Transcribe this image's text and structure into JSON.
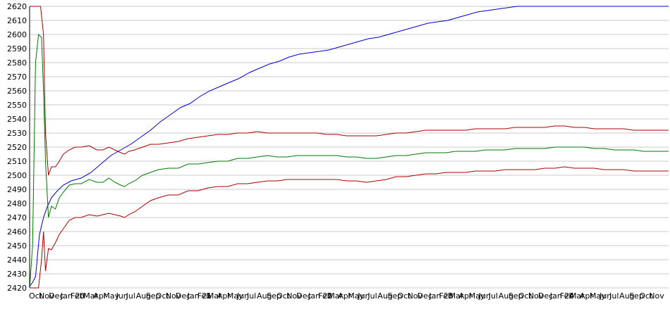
{
  "chart_data": {
    "type": "line",
    "title": "",
    "xlabel": "",
    "ylabel": "",
    "ylim": [
      2420,
      2620
    ],
    "yticks": [
      2420,
      2430,
      2440,
      2450,
      2460,
      2470,
      2480,
      2490,
      2500,
      2510,
      2520,
      2530,
      2540,
      2550,
      2560,
      2570,
      2580,
      2590,
      2600,
      2610,
      2620
    ],
    "grid": true,
    "legend": "none",
    "x_tick_labels": [
      "Oct",
      "Nov",
      "Dec",
      "Jan 20",
      "Feb",
      "Mar",
      "Apr",
      "May",
      "Jun",
      "Jul",
      "Aug",
      "Sep",
      "Oct",
      "Nov",
      "Dec",
      "Jan 21",
      "Feb",
      "Mar",
      "Apr",
      "May",
      "Jun",
      "Jul",
      "Aug",
      "Sep",
      "Oct",
      "Nov",
      "Dec",
      "Jan 22",
      "Feb",
      "Mar",
      "Apr",
      "May",
      "Jun",
      "Jul",
      "Aug",
      "Sep",
      "Oct",
      "Nov",
      "Dec",
      "Jan 23",
      "Feb",
      "Mar",
      "Apr",
      "May",
      "Jun",
      "Jul",
      "Aug",
      "Sep",
      "Oct",
      "Nov",
      "Dec",
      "Jan 24",
      "Feb",
      "Mar",
      "Apr",
      "May",
      "Jun",
      "Jul",
      "Aug",
      "Sep",
      "Oct",
      "Nov"
    ],
    "x_tick_months": [
      0,
      1,
      2,
      3.2,
      4.2,
      5.5,
      6.5,
      7.5,
      8.8,
      9.8,
      10.8,
      11.8,
      12.8,
      13.8,
      14.8,
      16,
      17,
      18,
      19,
      20,
      21,
      22,
      23,
      24,
      25,
      26,
      27,
      28.2,
      29.2,
      30.2,
      31.2,
      32.2,
      33.2,
      34.2,
      35.2,
      36.2,
      37.2,
      38.2,
      39.2,
      40.4,
      41.4,
      42.4,
      43.4,
      44.4,
      45.4,
      46.4,
      47.4,
      48.4,
      49.4,
      50.4,
      51.4,
      52.6,
      53.6,
      54.6,
      55.6,
      56.6,
      57.6,
      58.6,
      59.6,
      60.6,
      61.6,
      62.6
    ],
    "x_range_months": [
      0,
      64.5
    ],
    "colors": {
      "games": "#0000cc",
      "rating": "#007700",
      "bounds": "#aa0000",
      "grid": "#c8c8c8",
      "axis": "#000000"
    },
    "series": [
      {
        "key": "games",
        "x": [
          0,
          0.3,
          0.6,
          1.0,
          1.4,
          1.8,
          2.2,
          2.8,
          3.4,
          4.2,
          5.2,
          6.2,
          7.2,
          8.2,
          9.2,
          10.2,
          11.2,
          12.2,
          13.2,
          14.2,
          15.2,
          16.2,
          17.2,
          18.2,
          19.2,
          20.2,
          21.2,
          22.2,
          23.2,
          24.2,
          25.2,
          26.2,
          27.2,
          28.2,
          29.2,
          30.2,
          31.2,
          32.2,
          33.2,
          34.2,
          35.2,
          36.2,
          37.2,
          38.2,
          39.2,
          40.2,
          41.2,
          42.2,
          43.2,
          44.2,
          45.2,
          46.2,
          47.2,
          48.2,
          49.2,
          50.2,
          51.2,
          52.2,
          53.2,
          54.2,
          55.2,
          56.2,
          57.2,
          58.2,
          59.2,
          60.2,
          61.2,
          62.2,
          63.2,
          64.5
        ],
        "y": [
          2421,
          2424,
          2428,
          2458,
          2470,
          2478,
          2484,
          2489,
          2493,
          2496,
          2498,
          2502,
          2508,
          2514,
          2518,
          2522,
          2527,
          2532,
          2538,
          2543,
          2548,
          2551,
          2556,
          2560,
          2563,
          2566,
          2569,
          2573,
          2576,
          2579,
          2581,
          2584,
          2586,
          2587,
          2588,
          2589,
          2591,
          2593,
          2595,
          2597,
          2598,
          2600,
          2602,
          2604,
          2606,
          2608,
          2609,
          2610,
          2612,
          2614,
          2616,
          2617,
          2618,
          2619,
          2620,
          2620,
          2620,
          2620,
          2620,
          2620,
          2620,
          2620,
          2620,
          2620,
          2620,
          2620,
          2620,
          2620,
          2620,
          2620
        ]
      },
      {
        "key": "rating",
        "x": [
          0,
          0.3,
          0.6,
          0.9,
          1.2,
          1.4,
          1.6,
          1.9,
          2.2,
          2.6,
          3.0,
          3.4,
          4.0,
          4.6,
          5.2,
          6.0,
          6.8,
          7.4,
          8.0,
          8.6,
          9.2,
          9.6,
          10.0,
          10.6,
          11.4,
          12.2,
          13.0,
          14.0,
          15.0,
          16.0,
          17.0,
          18.0,
          19.0,
          20.0,
          21.0,
          22.0,
          23.0,
          24.0,
          25.0,
          26.0,
          27.0,
          28.0,
          29.0,
          30.0,
          31.0,
          32.0,
          33.0,
          34.0,
          35.0,
          36.0,
          37.0,
          38.0,
          39.0,
          40.0,
          41.0,
          42.0,
          43.0,
          44.0,
          45.0,
          46.0,
          47.0,
          48.0,
          49.0,
          50.0,
          51.0,
          52.0,
          53.0,
          54.0,
          55.0,
          56.0,
          57.0,
          58.0,
          59.0,
          60.0,
          61.0,
          62.0,
          63.0,
          64.5
        ],
        "y": [
          2420,
          2450,
          2580,
          2600,
          2598,
          2560,
          2510,
          2470,
          2478,
          2476,
          2484,
          2488,
          2493,
          2494,
          2494,
          2497,
          2495,
          2495,
          2498,
          2495,
          2493,
          2492,
          2494,
          2496,
          2500,
          2502,
          2504,
          2505,
          2505,
          2508,
          2508,
          2509,
          2510,
          2510,
          2512,
          2512,
          2513,
          2514,
          2513,
          2513,
          2514,
          2514,
          2514,
          2514,
          2514,
          2513,
          2513,
          2512,
          2512,
          2513,
          2514,
          2514,
          2515,
          2516,
          2516,
          2516,
          2517,
          2517,
          2517,
          2518,
          2518,
          2518,
          2519,
          2519,
          2519,
          2519,
          2520,
          2520,
          2520,
          2520,
          2519,
          2519,
          2518,
          2518,
          2518,
          2517,
          2517,
          2517
        ]
      },
      {
        "key": "upper",
        "x": [
          0,
          0.2,
          0.5,
          0.8,
          1.1,
          1.4,
          1.6,
          1.9,
          2.2,
          2.6,
          3.0,
          3.4,
          4.0,
          4.6,
          5.2,
          6.0,
          6.8,
          7.4,
          8.0,
          8.6,
          9.2,
          9.6,
          10.0,
          10.6,
          11.4,
          12.2,
          13.0,
          14.0,
          15.0,
          16.0,
          17.0,
          18.0,
          19.0,
          20.0,
          21.0,
          22.0,
          23.0,
          24.0,
          25.0,
          26.0,
          27.0,
          28.0,
          29.0,
          30.0,
          31.0,
          32.0,
          33.0,
          34.0,
          35.0,
          36.0,
          37.0,
          38.0,
          39.0,
          40.0,
          41.0,
          42.0,
          43.0,
          44.0,
          45.0,
          46.0,
          47.0,
          48.0,
          49.0,
          50.0,
          51.0,
          52.0,
          53.0,
          54.0,
          55.0,
          56.0,
          57.0,
          58.0,
          59.0,
          60.0,
          61.0,
          62.0,
          63.0,
          64.5
        ],
        "y": [
          2620,
          2620,
          2620,
          2620,
          2620,
          2600,
          2530,
          2500,
          2506,
          2506,
          2510,
          2515,
          2518,
          2520,
          2520,
          2521,
          2518,
          2518,
          2520,
          2518,
          2516,
          2515,
          2517,
          2518,
          2520,
          2522,
          2522,
          2523,
          2524,
          2526,
          2527,
          2528,
          2529,
          2529,
          2530,
          2530,
          2531,
          2530,
          2530,
          2530,
          2530,
          2530,
          2530,
          2529,
          2529,
          2528,
          2528,
          2528,
          2528,
          2529,
          2530,
          2530,
          2531,
          2532,
          2532,
          2532,
          2532,
          2532,
          2533,
          2533,
          2533,
          2533,
          2534,
          2534,
          2534,
          2534,
          2535,
          2535,
          2534,
          2534,
          2533,
          2533,
          2533,
          2533,
          2532,
          2532,
          2532,
          2532
        ]
      },
      {
        "key": "lower",
        "x": [
          0,
          0.3,
          0.6,
          0.9,
          1.2,
          1.4,
          1.6,
          1.9,
          2.2,
          2.6,
          3.0,
          3.4,
          4.0,
          4.6,
          5.2,
          6.0,
          6.8,
          7.4,
          8.0,
          8.6,
          9.2,
          9.6,
          10.0,
          10.6,
          11.4,
          12.2,
          13.0,
          14.0,
          15.0,
          16.0,
          17.0,
          18.0,
          19.0,
          20.0,
          21.0,
          22.0,
          23.0,
          24.0,
          25.0,
          26.0,
          27.0,
          28.0,
          29.0,
          30.0,
          31.0,
          32.0,
          33.0,
          34.0,
          35.0,
          36.0,
          37.0,
          38.0,
          39.0,
          40.0,
          41.0,
          42.0,
          43.0,
          44.0,
          45.0,
          46.0,
          47.0,
          48.0,
          49.0,
          50.0,
          51.0,
          52.0,
          53.0,
          54.0,
          55.0,
          56.0,
          57.0,
          58.0,
          59.0,
          60.0,
          61.0,
          62.0,
          63.0,
          64.5
        ],
        "y": [
          2420,
          2420,
          2420,
          2420,
          2440,
          2460,
          2432,
          2448,
          2447,
          2452,
          2458,
          2462,
          2468,
          2470,
          2470,
          2472,
          2471,
          2472,
          2473,
          2472,
          2471,
          2470,
          2472,
          2474,
          2478,
          2482,
          2484,
          2486,
          2486,
          2489,
          2489,
          2491,
          2492,
          2492,
          2494,
          2494,
          2495,
          2496,
          2496,
          2497,
          2497,
          2497,
          2497,
          2497,
          2497,
          2496,
          2496,
          2495,
          2496,
          2497,
          2499,
          2499,
          2500,
          2501,
          2501,
          2502,
          2502,
          2502,
          2503,
          2503,
          2503,
          2504,
          2504,
          2504,
          2504,
          2505,
          2505,
          2506,
          2505,
          2505,
          2505,
          2504,
          2504,
          2504,
          2503,
          2503,
          2503,
          2503
        ]
      }
    ]
  }
}
